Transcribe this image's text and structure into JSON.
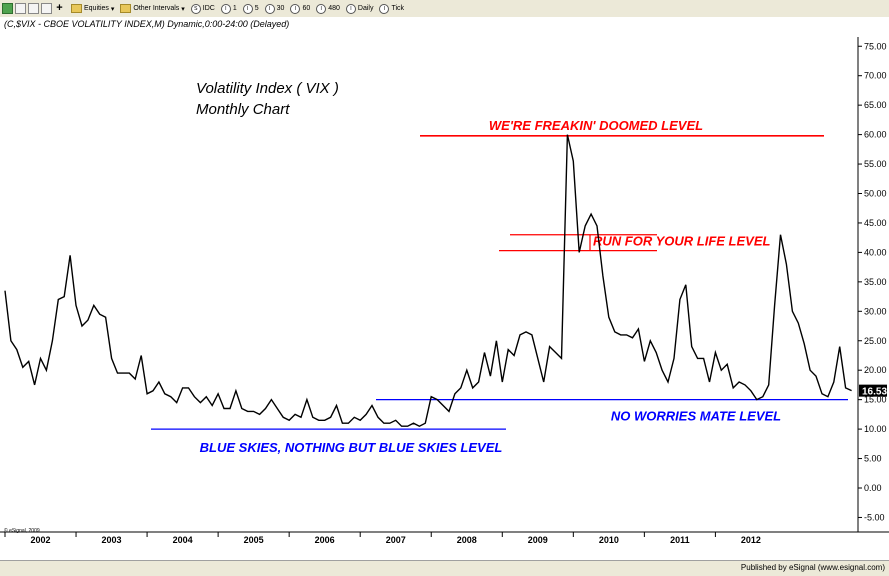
{
  "toolbar": {
    "equities_label": "Equities",
    "intervals_label": "Other Intervals",
    "intervals": [
      "IDC",
      "1",
      "5",
      "30",
      "60",
      "480",
      "Daily",
      "Tick"
    ]
  },
  "footer": {
    "published": "Published by eSignal (www.esignal.com)"
  },
  "copyright": "© eSignal, 2009",
  "chart_data": {
    "type": "line",
    "header": "(C,$VIX - CBOE VOLATILITY INDEX,M) Dynamic,0:00-24:00 (Delayed)",
    "title": "Volatility Index ( VIX )",
    "subtitle": "Monthly Chart",
    "last_value_label": "16.53",
    "ylim": [
      -5,
      77
    ],
    "y_ticks": [
      75,
      70,
      65,
      60,
      55,
      50,
      45,
      40,
      35,
      30,
      25,
      20,
      15,
      10,
      5,
      0,
      -5
    ],
    "y_tick_labels": [
      "75.00",
      "70.00",
      "65.00",
      "60.00",
      "55.00",
      "50.00",
      "45.00",
      "40.00",
      "35.00",
      "30.00",
      "25.00",
      "20.00",
      "15.00",
      "10.00",
      "5.00",
      "0.00",
      "-5.00"
    ],
    "x_labels": [
      "2002",
      "2003",
      "2004",
      "2005",
      "2006",
      "2007",
      "2008",
      "2009",
      "2010",
      "2011",
      "2012"
    ],
    "grid": false,
    "line_color": "#000000",
    "series": [
      {
        "start": "2002-01",
        "values": [
          33.5,
          25,
          23.5,
          20.5,
          21.5,
          17.5,
          22,
          20,
          25,
          32,
          32.5,
          39.5,
          31,
          27.5,
          28.5,
          31,
          29.5,
          29,
          22,
          19.5,
          19.5,
          19.5,
          18.5,
          22.5,
          16,
          16.5,
          18,
          16,
          15.5,
          14.5,
          17,
          17,
          15.5,
          14.5,
          15.5,
          14,
          16,
          13.5,
          13.5,
          16.5,
          13.5,
          13,
          13,
          12.5,
          13.5,
          15,
          13.5,
          12,
          11.5,
          12.5,
          12,
          15,
          12,
          11.5,
          11.5,
          12,
          14,
          11,
          11,
          12,
          11.5,
          12.5,
          14,
          12,
          11,
          11,
          11.5,
          10.5,
          10.5,
          11,
          10.5,
          11,
          15.5,
          15,
          14,
          13,
          16,
          17,
          20,
          17,
          18,
          23,
          19,
          25,
          18,
          23.5,
          22.5,
          26,
          26.5,
          26,
          22,
          18,
          24,
          23,
          22,
          60,
          55.5,
          40,
          44.5,
          46.5,
          44.5,
          36,
          29,
          26.5,
          26,
          26,
          25.5,
          27,
          21.5,
          25,
          23,
          20,
          18,
          22,
          32,
          34.5,
          24,
          22,
          22,
          18,
          23,
          20,
          21,
          17,
          18,
          17.5,
          16.5,
          15,
          15.5,
          17.5,
          31,
          43,
          38,
          30,
          28,
          24.5,
          20,
          19,
          16,
          15.5,
          18,
          24,
          17,
          16.53
        ],
        "color": "#000000"
      }
    ],
    "levels": [
      {
        "label": "WE'RE FREAKIN' DOOMED LEVEL",
        "value": 59.8,
        "color": "#ff0000"
      },
      {
        "label": "RUN FOR YOUR LIFE LEVEL",
        "values": [
          43,
          40.3
        ],
        "color": "#ff0000"
      },
      {
        "label": "NO WORRIES MATE LEVEL",
        "value": 15.0,
        "color": "#0000ff"
      },
      {
        "label": "BLUE SKIES, NOTHING BUT BLUE SKIES LEVEL",
        "value": 10.0,
        "color": "#0000ff"
      }
    ]
  }
}
